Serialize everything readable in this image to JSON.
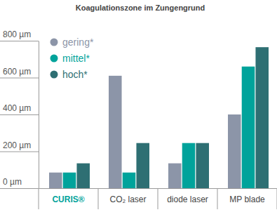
{
  "chart_data": {
    "type": "bar",
    "title": "Koagulationszone im Zungengrund",
    "categories": [
      "CURIS®",
      "CO₂ laser",
      "diode laser",
      "MP blade"
    ],
    "series": [
      {
        "name": "gering*",
        "color": "#8c95a8",
        "values": [
          85,
          610,
          135,
          400
        ]
      },
      {
        "name": "mittel*",
        "color": "#00a39b",
        "values": [
          85,
          85,
          245,
          660
        ]
      },
      {
        "name": "hoch*",
        "color": "#2e6f73",
        "values": [
          135,
          245,
          245,
          765
        ]
      }
    ],
    "ylim": [
      0,
      800
    ],
    "yticks": [
      {
        "value": 0,
        "label": "0 µm"
      },
      {
        "value": 200,
        "label": "200 µm"
      },
      {
        "value": 400,
        "label": "400 µm"
      },
      {
        "value": 600,
        "label": "600 µm"
      },
      {
        "value": 800,
        "label": "800 µm"
      }
    ],
    "legend": "upper-left"
  }
}
